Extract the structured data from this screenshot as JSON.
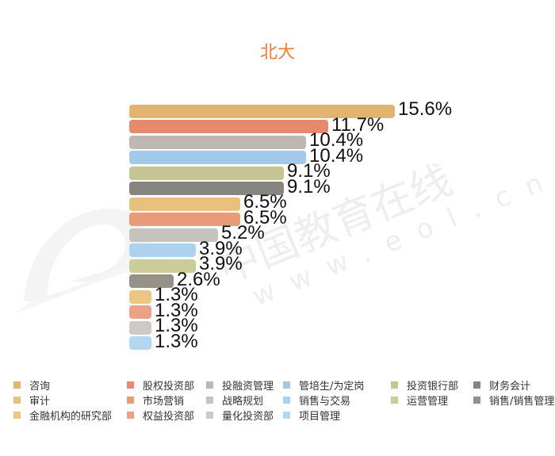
{
  "title": "北大",
  "watermark": {
    "text": "中国教育在线",
    "url_text": "www.eol.cn"
  },
  "chart_data": {
    "type": "bar",
    "orientation": "horizontal",
    "title": "北大",
    "xlabel": "",
    "ylabel": "",
    "grid": false,
    "legend_position": "bottom",
    "categories": [
      "咨询",
      "股权投资部",
      "投融资管理",
      "管培生/为定岗",
      "投资银行部",
      "财务会计",
      "审计",
      "市场营销",
      "战略规划",
      "销售与交易",
      "运营管理",
      "销售/销售管理",
      "金融机构的研究部",
      "权益投资部",
      "量化投资部",
      "项目管理"
    ],
    "values": [
      15.6,
      11.7,
      10.4,
      10.4,
      9.1,
      9.1,
      6.5,
      6.5,
      5.2,
      3.9,
      3.9,
      2.6,
      1.3,
      1.3,
      1.3,
      1.3
    ],
    "labels": [
      "15.6%",
      "11.7%",
      "10.4%",
      "10.4%",
      "9.1%",
      "9.1%",
      "6.5%",
      "6.5%",
      "5.2%",
      "3.9%",
      "3.9%",
      "2.6%",
      "1.3%",
      "1.3%",
      "1.3%",
      "1.3%"
    ],
    "colors": [
      "#e3b46e",
      "#e58a6c",
      "#bdb8b2",
      "#a3c9ea",
      "#c5c591",
      "#868580",
      "#e8c07f",
      "#e99a79",
      "#c6c2bc",
      "#add2ef",
      "#cccc98",
      "#959088",
      "#ebc687",
      "#eba386",
      "#cdc9c4",
      "#b4d7f1"
    ]
  },
  "legend": [
    {
      "label": "咨询",
      "color": "#e3b46e",
      "col": 0,
      "row": 0
    },
    {
      "label": "审计",
      "color": "#e8c07f",
      "col": 0,
      "row": 1
    },
    {
      "label": "金融机构的研究部",
      "color": "#ebc687",
      "col": 0,
      "row": 2
    },
    {
      "label": "股权投资部",
      "color": "#e58a6c",
      "col": 1,
      "row": 0
    },
    {
      "label": "市场营销",
      "color": "#e99a79",
      "col": 1,
      "row": 1
    },
    {
      "label": "权益投资部",
      "color": "#eba386",
      "col": 1,
      "row": 2
    },
    {
      "label": "投融资管理",
      "color": "#bdb8b2",
      "col": 2,
      "row": 0
    },
    {
      "label": "战略规划",
      "color": "#c6c2bc",
      "col": 2,
      "row": 1
    },
    {
      "label": "量化投资部",
      "color": "#cdc9c4",
      "col": 2,
      "row": 2
    },
    {
      "label": "管培生/为定岗",
      "color": "#a3c9ea",
      "col": 3,
      "row": 0
    },
    {
      "label": "销售与交易",
      "color": "#add2ef",
      "col": 3,
      "row": 1
    },
    {
      "label": "项目管理",
      "color": "#b4d7f1",
      "col": 3,
      "row": 2
    },
    {
      "label": "投资银行部",
      "color": "#c5c591",
      "col": 4,
      "row": 0
    },
    {
      "label": "运营管理",
      "color": "#cccc98",
      "col": 4,
      "row": 1
    },
    {
      "label": "财务会计",
      "color": "#868580",
      "col": 5,
      "row": 0
    },
    {
      "label": "销售/销售管理",
      "color": "#959088",
      "col": 5,
      "row": 1
    }
  ]
}
